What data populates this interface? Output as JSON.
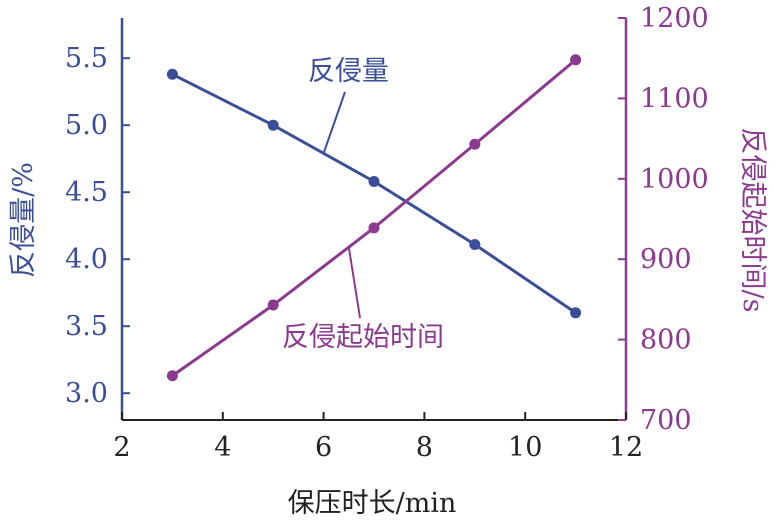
{
  "chart_data": {
    "type": "line",
    "xlabel": "保压时长/min",
    "ylabel_left": "反侵量/%",
    "ylabel_right": "反侵起始时间/s",
    "xlim": [
      2,
      12
    ],
    "ylim_left": [
      2.8,
      5.8
    ],
    "ylim_right": [
      700,
      1200
    ],
    "x_ticks": [
      "2",
      "4",
      "6",
      "8",
      "10",
      "12"
    ],
    "y_left_ticks": [
      "3.0",
      "3.5",
      "4.0",
      "4.5",
      "5.0",
      "5.5"
    ],
    "y_right_ticks": [
      "700",
      "800",
      "900",
      "1000",
      "1100",
      "1200"
    ],
    "grid": false,
    "colors": {
      "left_axis": "#3a4f97",
      "right_axis": "#8b3a8f"
    },
    "series": [
      {
        "name": "反侵量",
        "axis": "left",
        "color": "#3a4f97",
        "x": [
          3,
          5,
          7,
          9,
          11
        ],
        "values": [
          5.38,
          5.0,
          4.58,
          4.11,
          3.6
        ]
      },
      {
        "name": "反侵起始时间",
        "axis": "right",
        "color": "#8b3a8f",
        "x": [
          3,
          5,
          7,
          9,
          11
        ],
        "values": [
          755,
          843,
          939,
          1043,
          1148
        ]
      }
    ]
  }
}
